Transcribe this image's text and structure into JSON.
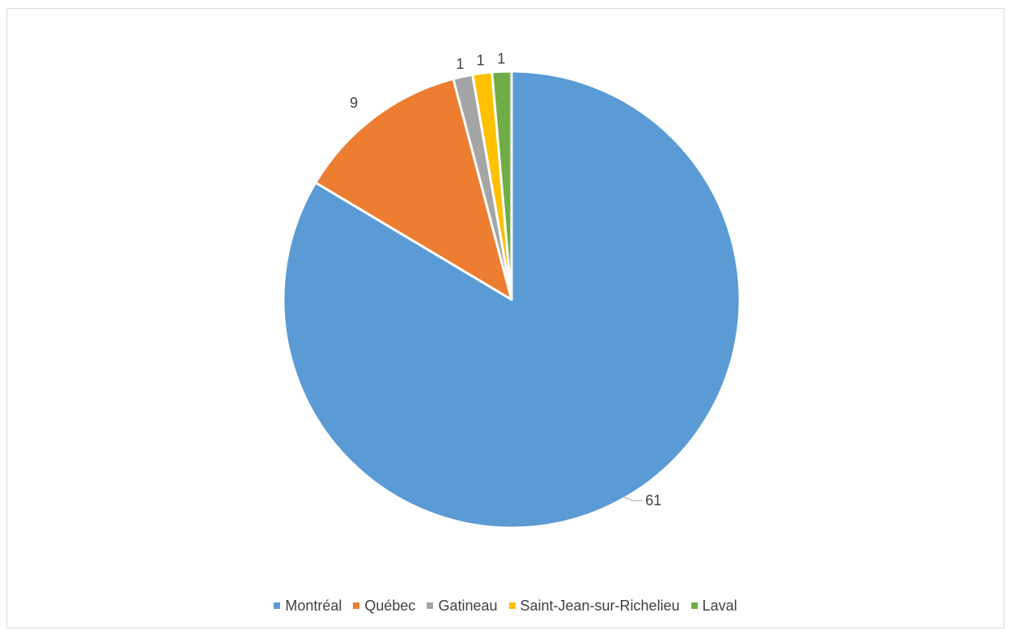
{
  "chart_data": {
    "type": "pie",
    "title": "",
    "legend_position": "bottom",
    "categories": [
      "Montréal",
      "Québec",
      "Gatineau",
      "Saint-Jean-sur-Richelieu",
      "Laval"
    ],
    "values": [
      61,
      9,
      1,
      1,
      1
    ],
    "colors": [
      "#5B9BD5",
      "#ED7D31",
      "#A5A5A5",
      "#FFC000",
      "#70AD47"
    ],
    "data_labels": [
      "61",
      "9",
      "1",
      "1",
      "1"
    ]
  }
}
